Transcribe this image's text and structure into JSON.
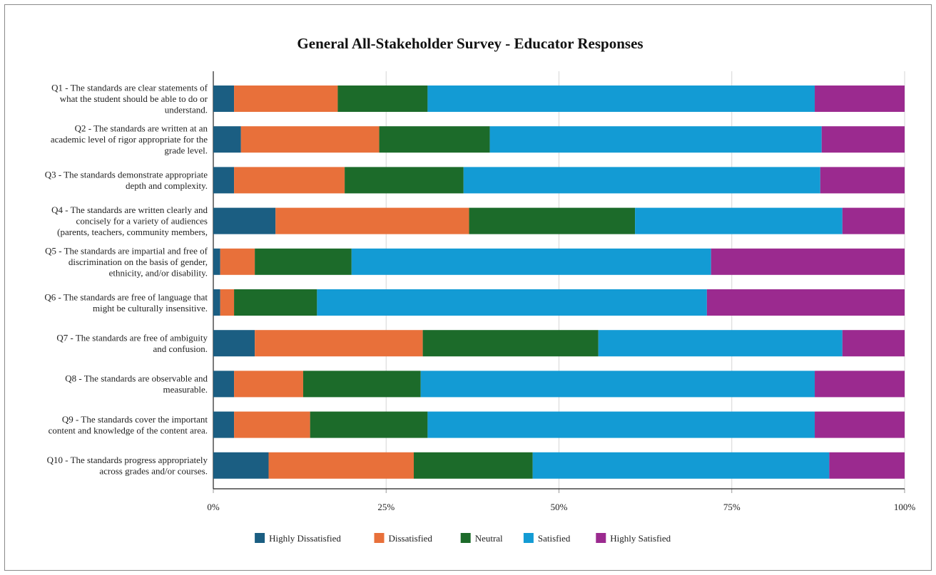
{
  "chart_data": {
    "type": "bar",
    "orientation": "horizontal",
    "stacked": "percent",
    "title": "General All-Stakeholder Survey - Educator Responses",
    "categories": [
      [
        "Q1 - The standards are clear statements of",
        "what the student should be able to do or",
        "understand."
      ],
      [
        "Q2 - The standards are written at an",
        "academic level of rigor appropriate for the",
        "grade level."
      ],
      [
        "Q3 - The standards demonstrate appropriate",
        "depth and complexity."
      ],
      [
        "Q4 - The standards are written clearly and",
        "concisely for a variety of audiences",
        "(parents, teachers, community members,"
      ],
      [
        "Q5 - The standards are impartial and free of",
        "discrimination on the basis of gender,",
        "ethnicity, and/or disability."
      ],
      [
        "Q6 - The standards are free of language that",
        "might be culturally insensitive."
      ],
      [
        "Q7 - The standards are free of ambiguity",
        "and confusion."
      ],
      [
        "Q8 - The standards are observable and",
        "measurable."
      ],
      [
        "Q9 - The standards cover the important",
        "content and knowledge of the content area."
      ],
      [
        "Q10 - The standards progress appropriately",
        "across grades and/or courses."
      ]
    ],
    "series": [
      {
        "name": "Highly Dissatisfied",
        "color": "#1b5e82",
        "values": [
          3,
          4,
          3,
          9,
          1,
          1,
          6,
          3,
          3,
          8
        ]
      },
      {
        "name": "Dissatisfied",
        "color": "#e8703a",
        "values": [
          15,
          20,
          16,
          28,
          5,
          2,
          24.3,
          10,
          11,
          21
        ]
      },
      {
        "name": "Neutral",
        "color": "#1c6b2a",
        "values": [
          13,
          16,
          17.2,
          24,
          14,
          12,
          25.4,
          17,
          17,
          17.2
        ]
      },
      {
        "name": "Satisfied",
        "color": "#139bd4",
        "values": [
          56,
          48,
          51.6,
          30,
          52,
          56.4,
          35.3,
          57,
          56,
          42.9
        ]
      },
      {
        "name": "Highly Satisfied",
        "color": "#9b2a8f",
        "values": [
          13,
          12,
          12.2,
          9,
          28,
          28.6,
          9,
          13,
          13,
          10.9
        ]
      }
    ],
    "xlim": [
      0,
      100
    ],
    "x_ticks": [
      "0%",
      "25%",
      "50%",
      "75%",
      "100%"
    ],
    "grid": true,
    "legend_position": "bottom"
  }
}
